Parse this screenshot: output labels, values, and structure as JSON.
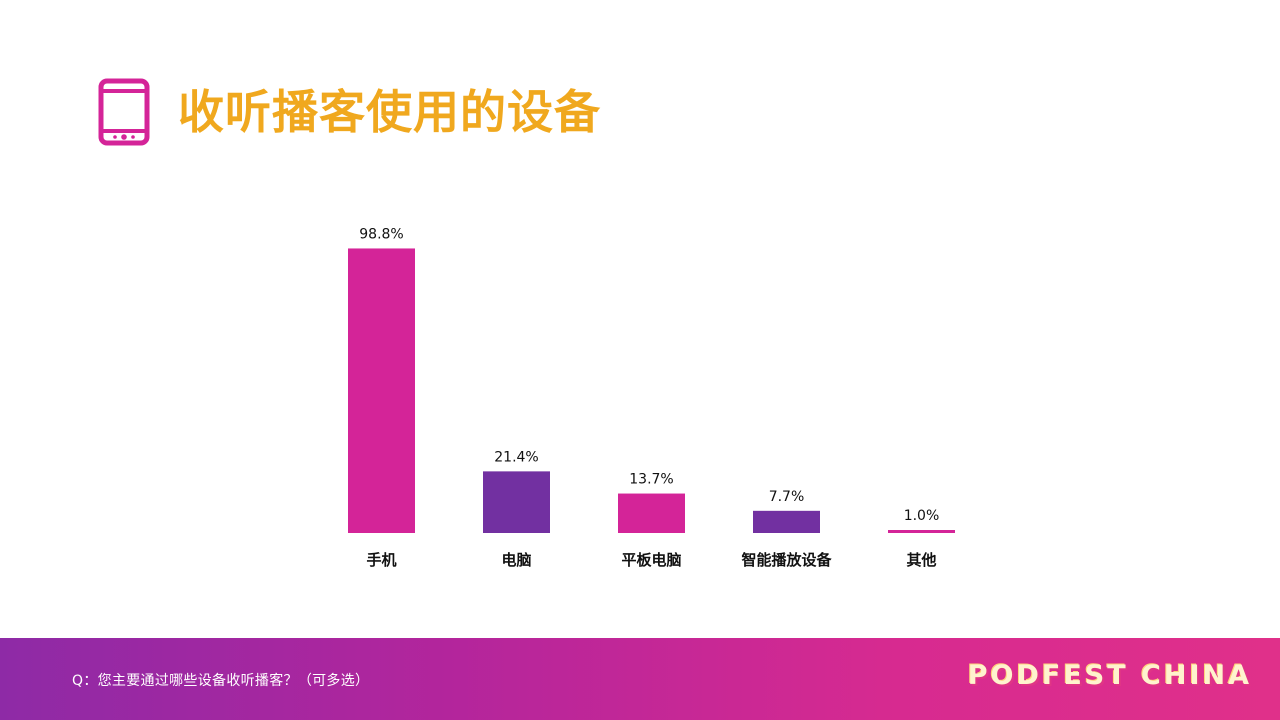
{
  "header": {
    "title": "收听播客使用的设备",
    "icon": "tablet-icon"
  },
  "colors": {
    "title": "#f0a81e",
    "magenta": "#d42498",
    "purple": "#7230a1"
  },
  "chart_data": {
    "type": "bar",
    "title": "",
    "xlabel": "",
    "ylabel": "",
    "ylim": [
      0,
      100
    ],
    "grid": false,
    "categories": [
      "手机",
      "电脑",
      "平板电脑",
      "智能播放设备",
      "其他"
    ],
    "values": [
      98.8,
      21.4,
      13.7,
      7.7,
      1.0
    ],
    "value_labels": [
      "98.8%",
      "21.4%",
      "13.7%",
      "7.7%",
      "1.0%"
    ],
    "bar_colors": [
      "#d42498",
      "#7230a1",
      "#d42498",
      "#7230a1",
      "#d42498"
    ]
  },
  "footer": {
    "question": "Q：您主要通过哪些设备收听播客？（可多选）",
    "brand": "PODFEST CHINA"
  }
}
